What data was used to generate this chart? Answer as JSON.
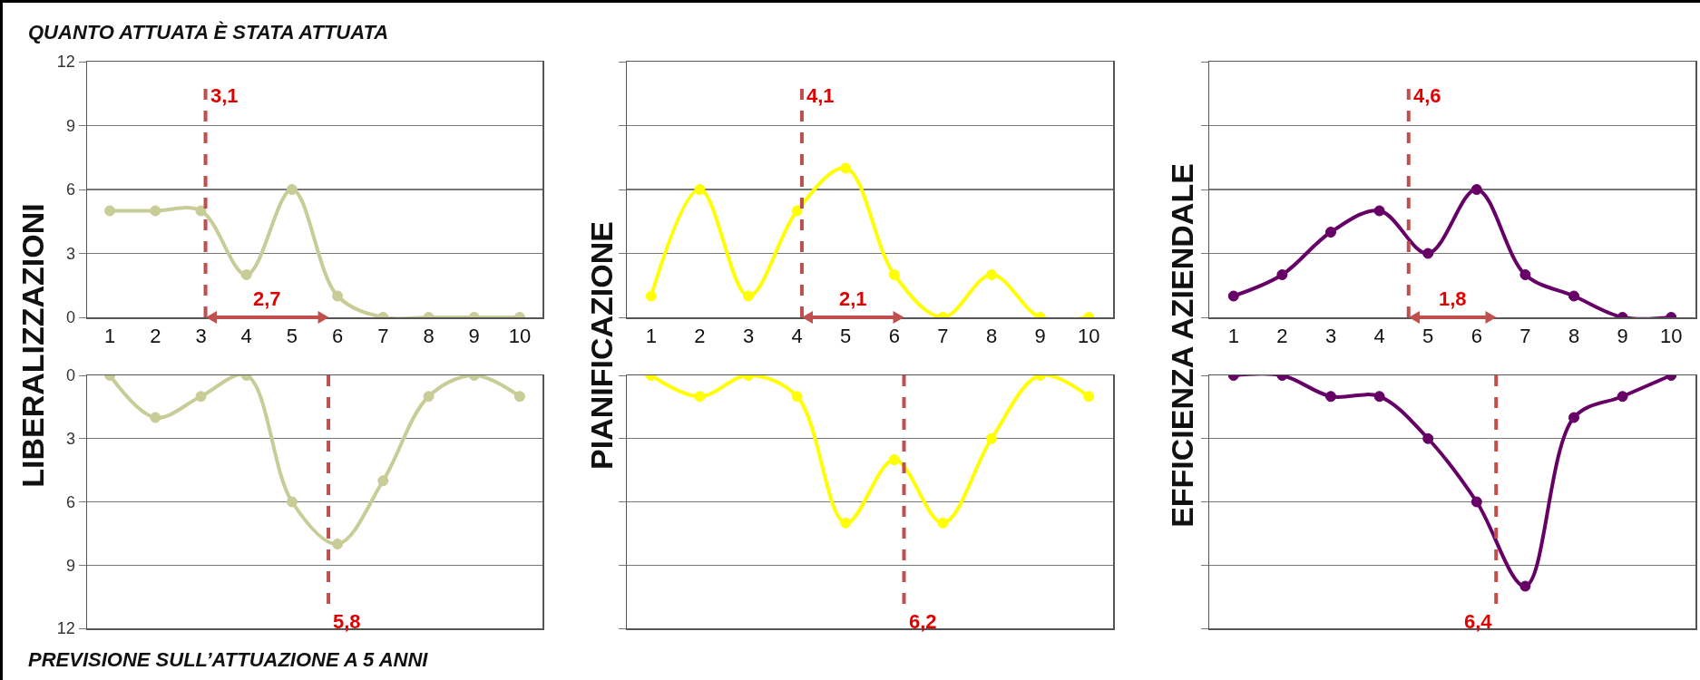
{
  "chart_data": [
    {
      "type": "line",
      "title": "QUANTO ATTUATA È STATA ATTUATA",
      "ylabel": "LIBERALIZZAZIONI",
      "x": [
        1,
        2,
        3,
        4,
        5,
        6,
        7,
        8,
        9,
        10
      ],
      "xlim": [
        0.5,
        10.5
      ],
      "xticks": [
        1,
        2,
        3,
        4,
        5,
        6,
        7,
        8,
        9,
        10
      ],
      "ylim": [
        0,
        12
      ],
      "yticks": [
        0,
        3,
        6,
        9,
        12
      ],
      "grid": "y",
      "marker": "circle",
      "line_style": "solid",
      "series": [
        {
          "color": "#c8cc96",
          "values": [
            5,
            5,
            5,
            2,
            6,
            1,
            0,
            0,
            0,
            0
          ]
        }
      ],
      "ref_lines": [
        {
          "axis": "x",
          "value": 3.1,
          "label": "3,1",
          "color": "#c0504d",
          "line_style": "dashed"
        }
      ],
      "annotations": [
        "2,7"
      ]
    },
    {
      "type": "line",
      "ylabel": "PIANIFICAZIONE",
      "x": [
        1,
        2,
        3,
        4,
        5,
        6,
        7,
        8,
        9,
        10
      ],
      "xlim": [
        0.5,
        10.5
      ],
      "xticks": [
        1,
        2,
        3,
        4,
        5,
        6,
        7,
        8,
        9,
        10
      ],
      "ylim": [
        0,
        12
      ],
      "yticks": [
        0,
        3,
        6,
        9,
        12
      ],
      "grid": "y",
      "marker": "circle",
      "line_style": "solid",
      "tick_labels": "x",
      "series": [
        {
          "color": "#ffff00",
          "values": [
            1,
            6,
            1,
            5,
            7,
            2,
            0,
            2,
            0,
            0
          ]
        }
      ],
      "ref_lines": [
        {
          "axis": "x",
          "value": 4.1,
          "label": "4,1",
          "color": "#c0504d",
          "line_style": "dashed"
        }
      ],
      "annotations": [
        "2,1"
      ]
    },
    {
      "type": "line",
      "ylabel": "EFFICIENZA AZIENDALE",
      "x": [
        1,
        2,
        3,
        4,
        5,
        6,
        7,
        8,
        9,
        10
      ],
      "xlim": [
        0.5,
        10.5
      ],
      "xticks": [
        1,
        2,
        3,
        4,
        5,
        6,
        7,
        8,
        9,
        10
      ],
      "ylim": [
        0,
        12
      ],
      "yticks": [
        0,
        3,
        6,
        9,
        12
      ],
      "grid": "y",
      "marker": "circle",
      "line_style": "solid",
      "tick_labels": "x",
      "series": [
        {
          "color": "#660066",
          "values": [
            1,
            2,
            4,
            5,
            3,
            6,
            2,
            1,
            0,
            0
          ]
        }
      ],
      "ref_lines": [
        {
          "axis": "x",
          "value": 4.6,
          "label": "4,6",
          "color": "#c0504d",
          "line_style": "dashed"
        }
      ],
      "annotations": [
        "1,8"
      ]
    },
    {
      "type": "line",
      "title": "PREVISIONE SULL’ATTUAZIONE A 5 ANNI",
      "x": [
        1,
        2,
        3,
        4,
        5,
        6,
        7,
        8,
        9,
        10
      ],
      "xlim": [
        0.5,
        10.5
      ],
      "ylim": [
        12,
        0
      ],
      "yticks": [
        0,
        3,
        6,
        9,
        12
      ],
      "grid": "y",
      "marker": "circle",
      "line_style": "solid",
      "tick_labels": "y",
      "series": [
        {
          "color": "#c8cc96",
          "values": [
            0,
            2,
            1,
            0,
            6,
            8,
            5,
            1,
            0,
            1
          ]
        }
      ],
      "ref_lines": [
        {
          "axis": "x",
          "value": 5.8,
          "label": "5,8",
          "color": "#c0504d",
          "line_style": "dashed"
        }
      ]
    },
    {
      "type": "line",
      "x": [
        1,
        2,
        3,
        4,
        5,
        6,
        7,
        8,
        9,
        10
      ],
      "xlim": [
        0.5,
        10.5
      ],
      "ylim": [
        12,
        0
      ],
      "yticks": [
        0,
        3,
        6,
        9,
        12
      ],
      "grid": "y",
      "marker": "circle",
      "line_style": "solid",
      "tick_labels": false,
      "series": [
        {
          "color": "#ffff00",
          "values": [
            0,
            1,
            0,
            1,
            7,
            4,
            7,
            3,
            0,
            1
          ]
        }
      ],
      "ref_lines": [
        {
          "axis": "x",
          "value": 6.2,
          "label": "6,2",
          "color": "#c0504d",
          "line_style": "dashed"
        }
      ]
    },
    {
      "type": "line",
      "x": [
        1,
        2,
        3,
        4,
        5,
        6,
        7,
        8,
        9,
        10
      ],
      "xlim": [
        0.5,
        10.5
      ],
      "ylim": [
        12,
        0
      ],
      "yticks": [
        0,
        3,
        6,
        9,
        12
      ],
      "grid": "y",
      "marker": "circle",
      "line_style": "solid",
      "tick_labels": false,
      "series": [
        {
          "color": "#660066",
          "values": [
            0,
            0,
            1,
            1,
            3,
            6,
            10,
            2,
            1,
            0
          ]
        }
      ],
      "ref_lines": [
        {
          "axis": "x",
          "value": 6.4,
          "label": "6,4",
          "color": "#c0504d",
          "line_style": "dashed"
        }
      ]
    }
  ]
}
